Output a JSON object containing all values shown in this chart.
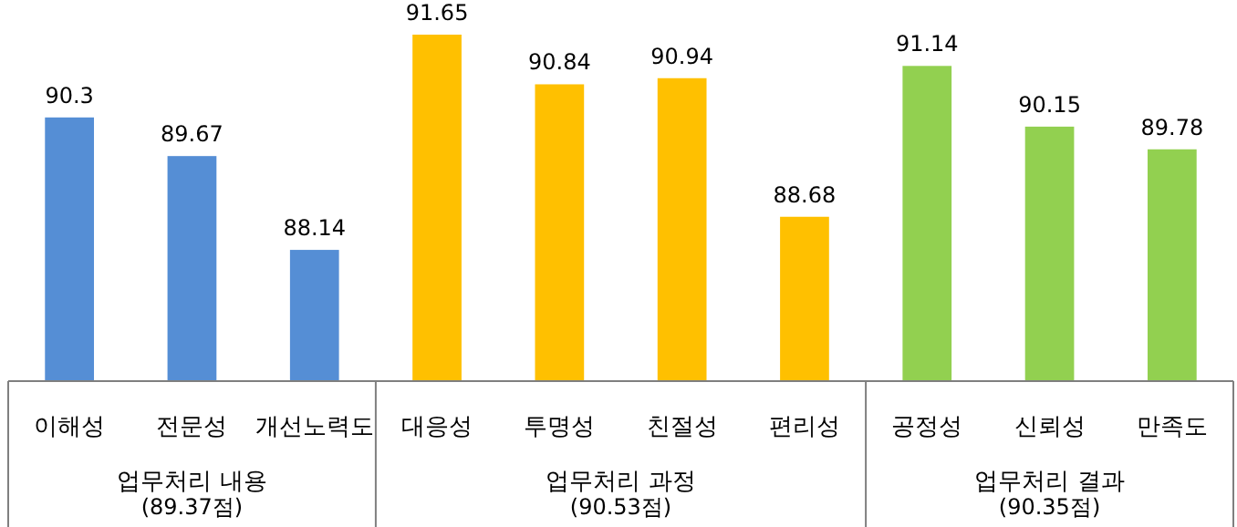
{
  "chart_data": {
    "type": "bar",
    "categories": [
      "이해성",
      "전문성",
      "개선노력도",
      "대응성",
      "투명성",
      "친절성",
      "편리성",
      "공정성",
      "신뢰성",
      "만족도"
    ],
    "values": [
      90.3,
      89.67,
      88.14,
      91.65,
      90.84,
      90.94,
      88.68,
      91.14,
      90.15,
      89.78
    ],
    "colors": [
      "#558ed5",
      "#558ed5",
      "#558ed5",
      "#ffc000",
      "#ffc000",
      "#ffc000",
      "#ffc000",
      "#92d050",
      "#92d050",
      "#92d050"
    ],
    "data_labels": true,
    "ylim": [
      86,
      91.65
    ],
    "tick_labels": "x",
    "annotations": [
      "업무처리 내용\n(89.37점)",
      "업무처리 과정\n(90.53점)",
      "업무처리 결과\n(90.35점)"
    ]
  }
}
